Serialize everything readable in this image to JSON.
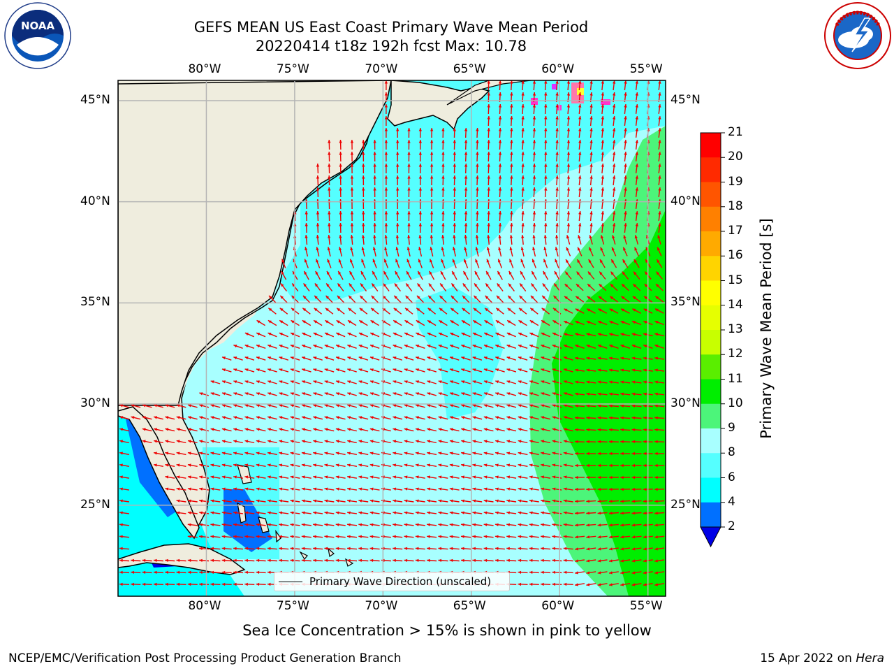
{
  "title": {
    "line1": "GEFS MEAN US East Coast Primary Wave Mean Period",
    "line2": "20220414 t18z 192h fcst   Max: 10.78"
  },
  "logos": {
    "left": "NOAA",
    "right": "NATIONAL WEATHER SERVICE"
  },
  "axes": {
    "lon_labels": [
      "80°W",
      "75°W",
      "70°W",
      "65°W",
      "60°W",
      "55°W"
    ],
    "lat_labels": [
      "45°N",
      "40°N",
      "35°N",
      "30°N",
      "25°N"
    ],
    "lon_values": [
      -80,
      -75,
      -70,
      -65,
      -60,
      -55
    ],
    "lat_values": [
      45,
      40,
      35,
      30,
      25
    ],
    "lon_range": [
      -85,
      -54
    ],
    "lat_range": [
      20.5,
      46
    ],
    "grid": true
  },
  "colorbar": {
    "label": "Primary Wave Mean Period [s]",
    "ticks": [
      "21",
      "20",
      "19",
      "18",
      "17",
      "16",
      "15",
      "14",
      "13",
      "12",
      "11",
      "10",
      "9",
      "8",
      "6",
      "4",
      "2"
    ],
    "colors": [
      "#ff0000",
      "#ff2a00",
      "#ff5500",
      "#ff8000",
      "#ffaa00",
      "#ffd400",
      "#ffff00",
      "#e6ff00",
      "#c8ff00",
      "#5aee00",
      "#00ee00",
      "#4cf57a",
      "#a8ffff",
      "#55ffff",
      "#00ffff",
      "#0070ff",
      "#0000e6"
    ]
  },
  "legend": {
    "label": "Primary Wave Direction (unscaled)"
  },
  "note": "Sea Ice Concentration > 15% is shown in pink to yellow",
  "footer": {
    "left": "NCEP/EMC/Verification Post Processing Product Generation Branch",
    "right_date": "15 Apr 2022 on",
    "right_host": "Hera"
  },
  "colors": {
    "land": "#efedde",
    "arrow": "#ee0000",
    "grid": "#b4b4b4"
  }
}
